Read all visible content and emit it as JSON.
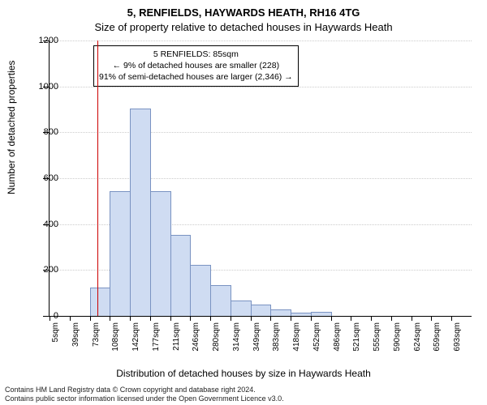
{
  "title_main": "5, RENFIELDS, HAYWARDS HEATH, RH16 4TG",
  "title_sub": "Size of property relative to detached houses in Haywards Heath",
  "y_label": "Number of detached properties",
  "x_label": "Distribution of detached houses by size in Haywards Heath",
  "footer_line1": "Contains HM Land Registry data © Crown copyright and database right 2024.",
  "footer_line2": "Contains public sector information licensed under the Open Government Licence v3.0.",
  "chart": {
    "type": "histogram",
    "background_color": "#ffffff",
    "grid_color": "#cccccc",
    "bar_fill": "#cfdcf2",
    "bar_stroke": "#7a93c2",
    "reference_line_color": "#cc0000",
    "y": {
      "min": 0,
      "max": 1200,
      "ticks": [
        0,
        200,
        400,
        600,
        800,
        1000,
        1200
      ]
    },
    "x_categories": [
      "5sqm",
      "39sqm",
      "73sqm",
      "108sqm",
      "142sqm",
      "177sqm",
      "211sqm",
      "246sqm",
      "280sqm",
      "314sqm",
      "349sqm",
      "383sqm",
      "418sqm",
      "452sqm",
      "486sqm",
      "521sqm",
      "555sqm",
      "590sqm",
      "624sqm",
      "659sqm",
      "693sqm"
    ],
    "bars": [
      0,
      0,
      120,
      540,
      900,
      540,
      350,
      220,
      130,
      65,
      45,
      25,
      10,
      15,
      0,
      0,
      0,
      0,
      0,
      0,
      0
    ],
    "reference_line_category_index": 2.4,
    "bar_width_ratio": 1.0
  },
  "info_box": {
    "line1": "5 RENFIELDS: 85sqm",
    "line2": "← 9% of detached houses are smaller (228)",
    "line3": "91% of semi-detached houses are larger (2,346) →"
  }
}
